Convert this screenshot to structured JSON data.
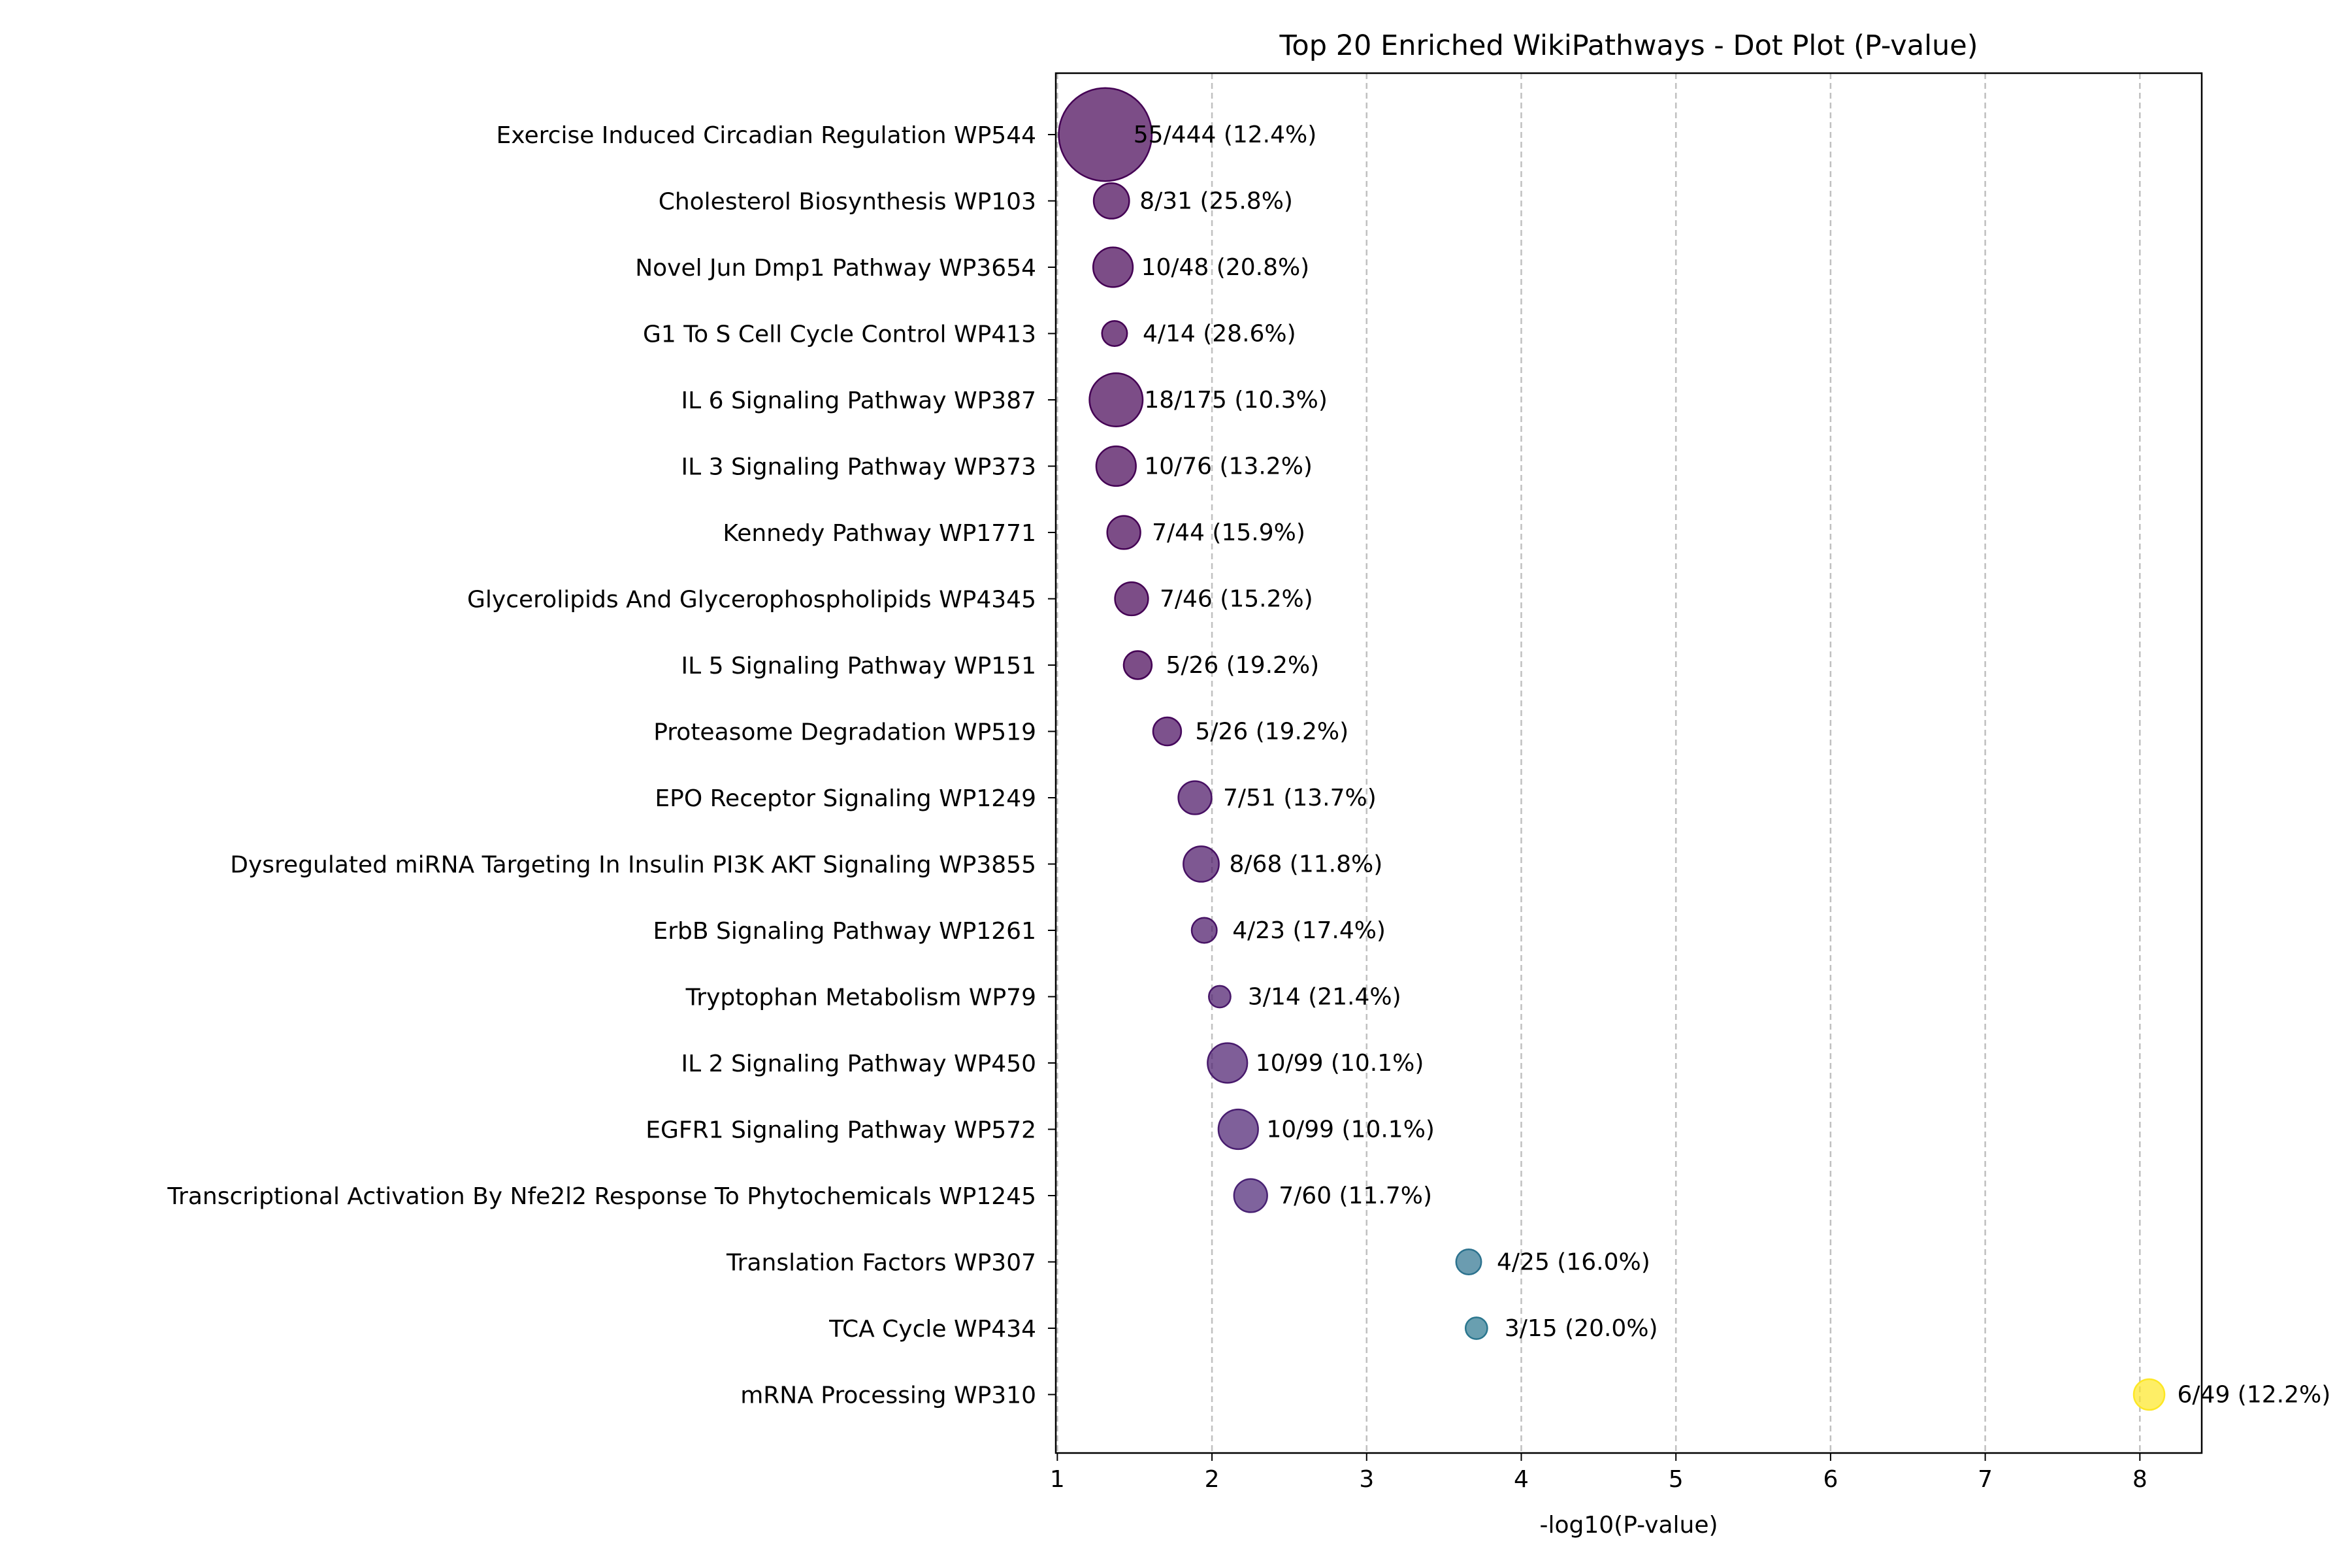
{
  "chart_data": {
    "type": "scatter",
    "title": "Top 20 Enriched WikiPathways - Dot Plot (P-value)",
    "xlabel": "-log10(P-value)",
    "ylabel": "",
    "xlim": [
      0.99,
      8.4
    ],
    "xticks": [
      1,
      2,
      3,
      4,
      5,
      6,
      7,
      8
    ],
    "grid": "x-dashed",
    "legend": "none",
    "colormap": "viridis",
    "points": [
      {
        "label": "Exercise Induced Circadian Regulation WP544",
        "x": 1.31,
        "count": 55,
        "total": 444,
        "pct": "12.4%",
        "annotation": "55/444 (12.4%)",
        "color": "#440154"
      },
      {
        "label": "Cholesterol Biosynthesis WP103",
        "x": 1.35,
        "count": 8,
        "total": 31,
        "pct": "25.8%",
        "annotation": "8/31 (25.8%)",
        "color": "#440154"
      },
      {
        "label": "Novel Jun Dmp1 Pathway WP3654",
        "x": 1.36,
        "count": 10,
        "total": 48,
        "pct": "20.8%",
        "annotation": "10/48 (20.8%)",
        "color": "#440154"
      },
      {
        "label": "G1 To S Cell Cycle Control WP413",
        "x": 1.37,
        "count": 4,
        "total": 14,
        "pct": "28.6%",
        "annotation": "4/14 (28.6%)",
        "color": "#440154"
      },
      {
        "label": "IL 6 Signaling Pathway WP387",
        "x": 1.38,
        "count": 18,
        "total": 175,
        "pct": "10.3%",
        "annotation": "18/175 (10.3%)",
        "color": "#440154"
      },
      {
        "label": "IL 3 Signaling Pathway WP373",
        "x": 1.38,
        "count": 10,
        "total": 76,
        "pct": "13.2%",
        "annotation": "10/76 (13.2%)",
        "color": "#440154"
      },
      {
        "label": "Kennedy Pathway WP1771",
        "x": 1.43,
        "count": 7,
        "total": 44,
        "pct": "15.9%",
        "annotation": "7/44 (15.9%)",
        "color": "#440154"
      },
      {
        "label": "Glycerolipids And Glycerophospholipids WP4345",
        "x": 1.48,
        "count": 7,
        "total": 46,
        "pct": "15.2%",
        "annotation": "7/46 (15.2%)",
        "color": "#440154"
      },
      {
        "label": "IL 5 Signaling Pathway WP151",
        "x": 1.52,
        "count": 5,
        "total": 26,
        "pct": "19.2%",
        "annotation": "5/26 (19.2%)",
        "color": "#440154"
      },
      {
        "label": "Proteasome Degradation WP519",
        "x": 1.71,
        "count": 5,
        "total": 26,
        "pct": "19.2%",
        "annotation": "5/26 (19.2%)",
        "color": "#46085c"
      },
      {
        "label": "EPO Receptor Signaling WP1249",
        "x": 1.89,
        "count": 7,
        "total": 51,
        "pct": "13.7%",
        "annotation": "7/51 (13.7%)",
        "color": "#471063"
      },
      {
        "label": "Dysregulated miRNA Targeting In Insulin PI3K AKT Signaling WP3855",
        "x": 1.93,
        "count": 8,
        "total": 68,
        "pct": "11.8%",
        "annotation": "8/68 (11.8%)",
        "color": "#471164"
      },
      {
        "label": "ErbB Signaling Pathway WP1261",
        "x": 1.95,
        "count": 4,
        "total": 23,
        "pct": "17.4%",
        "annotation": "4/23 (17.4%)",
        "color": "#471365"
      },
      {
        "label": "Tryptophan Metabolism WP79",
        "x": 2.05,
        "count": 3,
        "total": 14,
        "pct": "21.4%",
        "annotation": "3/14 (21.4%)",
        "color": "#481769"
      },
      {
        "label": "IL 2 Signaling Pathway WP450",
        "x": 2.1,
        "count": 10,
        "total": 99,
        "pct": "10.1%",
        "annotation": "10/99 (10.1%)",
        "color": "#481a6c"
      },
      {
        "label": "EGFR1 Signaling Pathway WP572",
        "x": 2.17,
        "count": 10,
        "total": 99,
        "pct": "10.1%",
        "annotation": "10/99 (10.1%)",
        "color": "#481d6f"
      },
      {
        "label": "Transcriptional Activation By Nfe2l2 Response To Phytochemicals WP1245",
        "x": 2.25,
        "count": 7,
        "total": 60,
        "pct": "11.7%",
        "annotation": "7/60 (11.7%)",
        "color": "#482173"
      },
      {
        "label": "Translation Factors WP307",
        "x": 3.66,
        "count": 4,
        "total": 25,
        "pct": "16.0%",
        "annotation": "4/25 (16.0%)",
        "color": "#2c728e"
      },
      {
        "label": "TCA Cycle WP434",
        "x": 3.71,
        "count": 3,
        "total": 15,
        "pct": "20.0%",
        "annotation": "3/15 (20.0%)",
        "color": "#2a768e"
      },
      {
        "label": "mRNA Processing WP310",
        "x": 8.06,
        "count": 6,
        "total": 49,
        "pct": "12.2%",
        "annotation": "6/49 (12.2%)",
        "color": "#fde725"
      }
    ]
  }
}
